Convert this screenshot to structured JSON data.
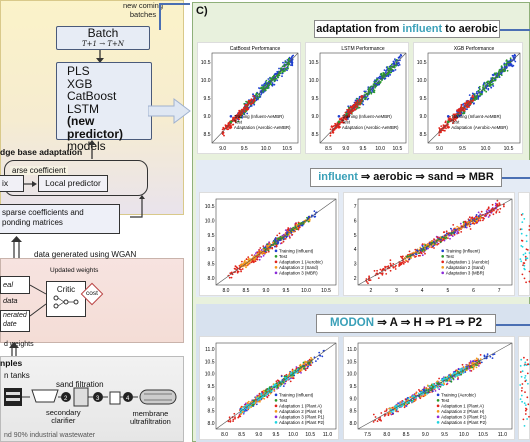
{
  "left": {
    "new_batches": "new coming\nbatches",
    "batch": {
      "label": "Batch",
      "range": "T+1 → T+N"
    },
    "models": [
      "PLS",
      "XGB",
      "CatBoost",
      "LSTM",
      "(new predictor)",
      "models"
    ],
    "kb_title": "dge base adaptation",
    "coef_label": "arse coefficient",
    "ix_label": "ix",
    "local_predictor": "Local predictor",
    "sparse_text": "sparse coefficients and\nponding matrices",
    "wgan_label": "data generated using WGAN",
    "updated_weights": "Updated weights",
    "real_data": "eal data",
    "gen_data": "nerated\ndate",
    "critic": "Critic",
    "cost": "cost",
    "weights_label": "d weights",
    "samples": "nples",
    "tanks": "n tanks",
    "sand_filtration": "sand filtration",
    "secondary_clarifier": "secondary\nclarifier",
    "membrane": "membrane\nultrafiltration",
    "industrial": "nd 90% industrial wastewater"
  },
  "panel": {
    "label": "C)",
    "row1_title": {
      "pre": "adaptation from ",
      "hl": "influent",
      "post": " to aerobic"
    },
    "row2_title": {
      "hl": "influent",
      "post": " ⇒ aerobic ⇒ sand ⇒ MBR"
    },
    "row3_title": {
      "hl": "MODON",
      "post": " ⇒ A ⇒ H ⇒ P1 ⇒ P2"
    }
  },
  "colors": {
    "training": "#1f3fd0",
    "test": "#2a9a2a",
    "adaptation_red": "#e0241b",
    "adaptation_orange": "#f39a1a",
    "adaptation_purple": "#8a2bd8",
    "adaptation_cyan": "#1fd4e0",
    "accent": "#3aa0b8"
  },
  "chart_data": [
    {
      "type": "scatter",
      "title": "CatBoost Performance",
      "legend": [
        "Training (Infuent-AeMBR)",
        "Test",
        "Adaptation (Aerobic-AeMBR)"
      ],
      "xticks": [
        "9.0",
        "9.5",
        "10.0",
        "10.5"
      ],
      "yticks": [
        "8.5",
        "9.0",
        "9.5",
        "10.0",
        "10.5"
      ]
    },
    {
      "type": "scatter",
      "title": "LSTM Performance",
      "legend": [
        "Training (Infuent-AeMBR)",
        "Test",
        "Adaptation (Aerobic-AeMBR)"
      ],
      "xticks": [
        "8.5",
        "9.0",
        "9.5",
        "10.0",
        "10.5"
      ],
      "yticks": [
        "8.5",
        "9.0",
        "9.5",
        "10.0",
        "10.5"
      ]
    },
    {
      "type": "scatter",
      "title": "XGB Performance",
      "legend": [
        "Training (Infuent-AeMBR)",
        "Test",
        "Adaptation (Aerobic-AeMBR)"
      ],
      "xticks": [
        "9.0",
        "9.5",
        "10.0",
        "10.5"
      ],
      "yticks": [
        "8.5",
        "9.0",
        "9.5",
        "10.0",
        "10.5"
      ]
    },
    {
      "type": "scatter",
      "title": "",
      "legend": [
        "Training (Influent)",
        "Test",
        "Adaptation 1 (Aerobic)",
        "Adaptation 2 (Sand)",
        "Adaptation 3 (MBR)"
      ],
      "xticks": [
        "8.0",
        "8.5",
        "9.0",
        "9.5",
        "10.0",
        "10.5"
      ],
      "yticks": [
        "8.0",
        "8.5",
        "9.0",
        "9.5",
        "10.0",
        "10.5"
      ]
    },
    {
      "type": "scatter",
      "title": "",
      "legend": [
        "Training (Influent)",
        "Test",
        "Adaptation 1 (Aerobic)",
        "Adaptation 2 (Sand)",
        "Adaptation 3 (MBR)"
      ],
      "xticks": [
        "2",
        "3",
        "4",
        "5",
        "6",
        "7"
      ],
      "yticks": [
        "2",
        "3",
        "4",
        "5",
        "6",
        "7"
      ]
    },
    {
      "type": "scatter",
      "title": "",
      "legend": [
        "Training (Influent)",
        "Test",
        "Adaptation 1 (Plant A)",
        "Adaptation 2 (Plant H)",
        "Adaptation 3 (Plant P1)",
        "Adaptation 4 (Plant P2)"
      ],
      "xticks": [
        "8.0",
        "8.5",
        "9.0",
        "9.5",
        "10.0",
        "10.5",
        "11.0"
      ],
      "yticks": [
        "8.0",
        "8.5",
        "9.0",
        "9.5",
        "10.0",
        "10.5",
        "11.0"
      ]
    },
    {
      "type": "scatter",
      "title": "",
      "legend": [
        "Training (Aerobic)",
        "Test",
        "Adaptation 1 (Plant A)",
        "Adaptation 2 (Plant H)",
        "Adaptation 3 (Plant P1)",
        "Adaptation 4 (Plant P2)"
      ],
      "xticks": [
        "7.5",
        "8.0",
        "8.5",
        "9.0",
        "9.5",
        "10.0",
        "10.5",
        "11.0"
      ],
      "yticks": [
        "8.0",
        "8.5",
        "9.0",
        "9.5",
        "10.0",
        "10.5",
        "11.0"
      ]
    }
  ]
}
